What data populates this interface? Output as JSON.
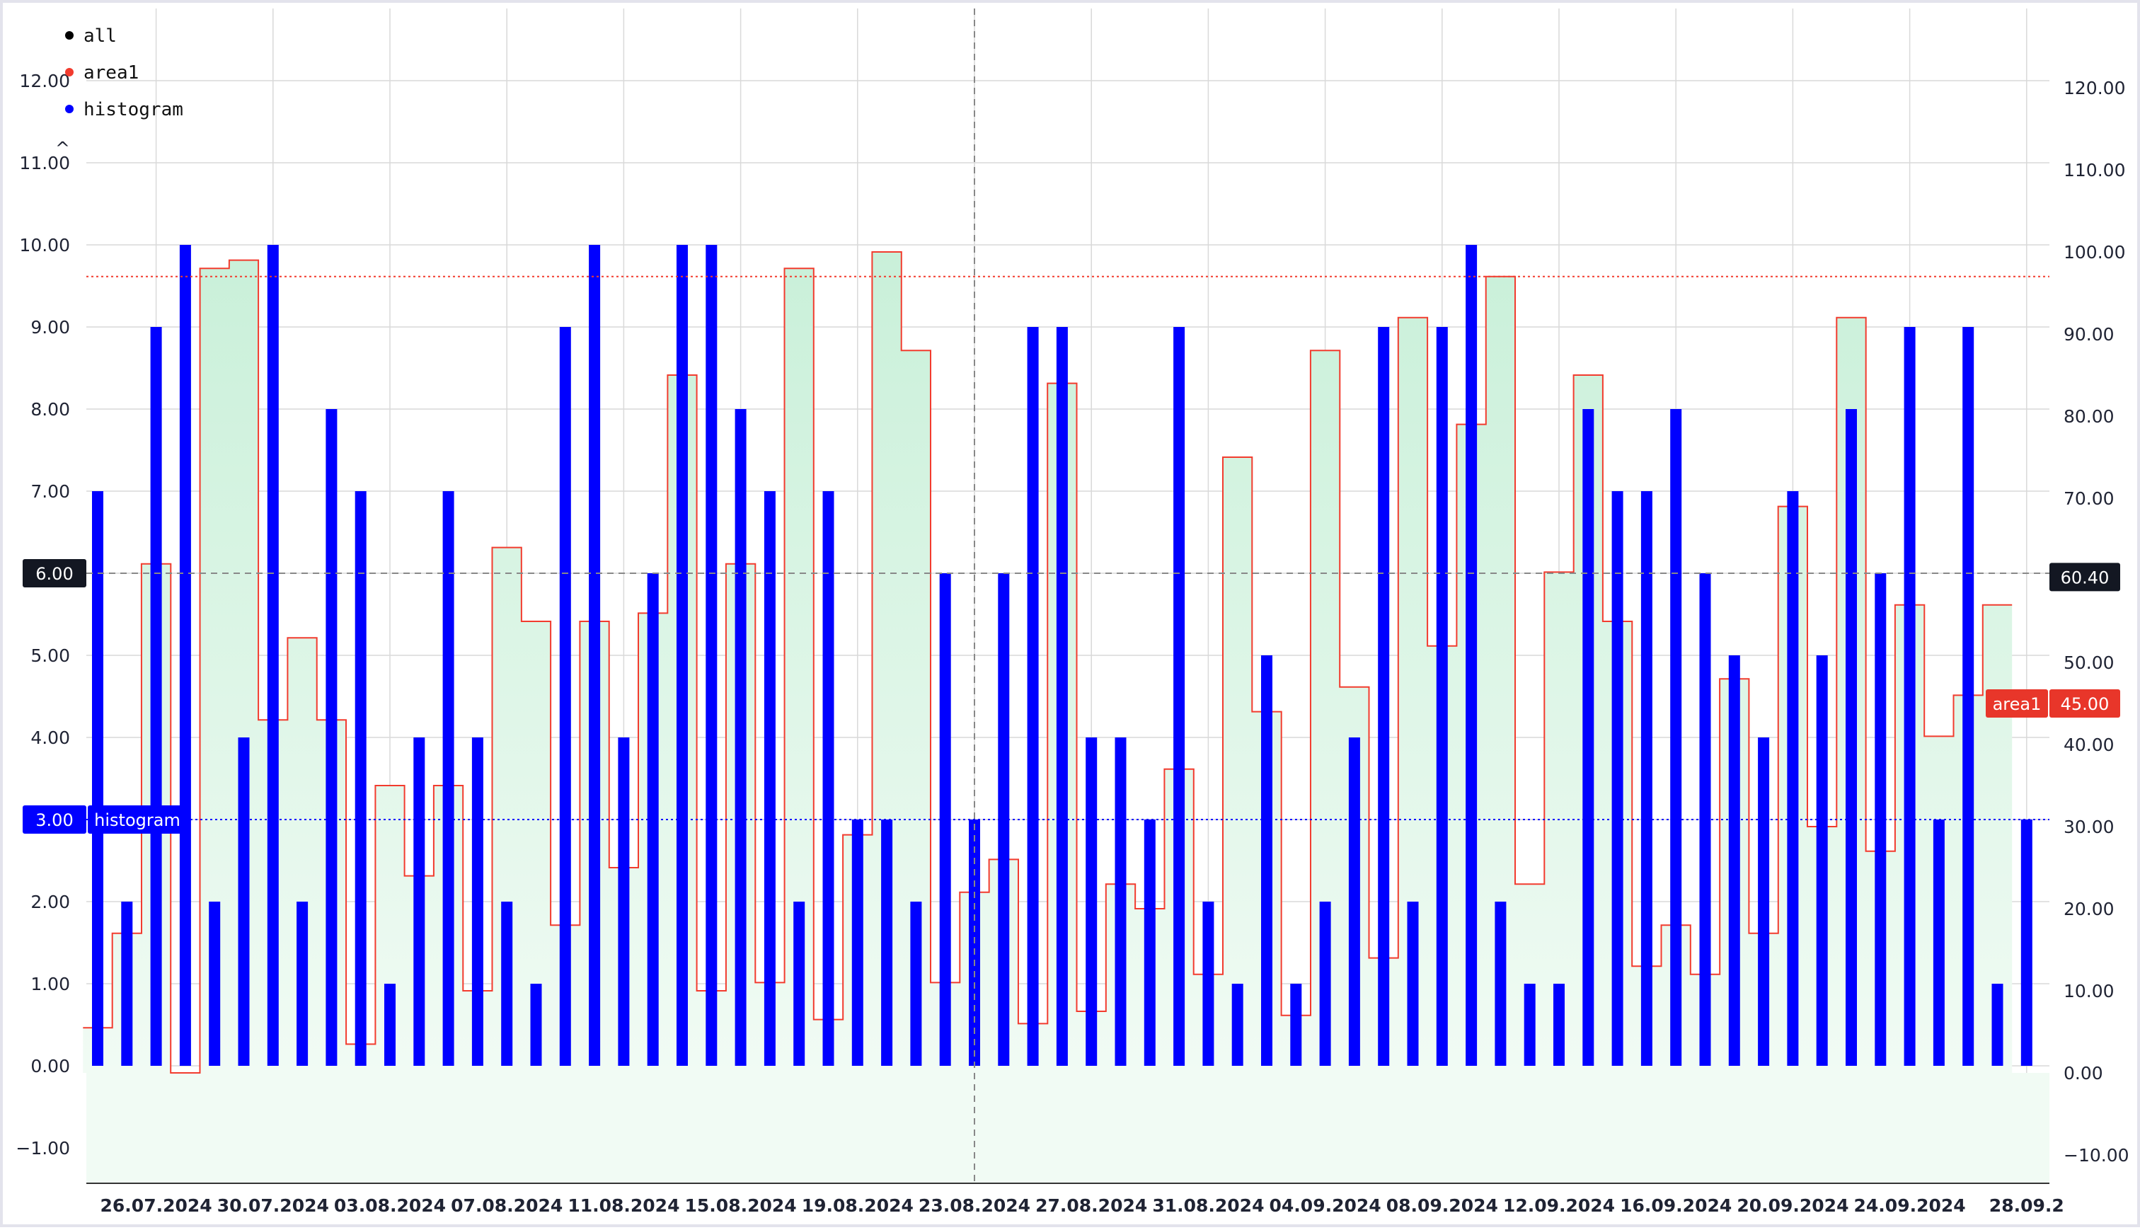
{
  "colors": {
    "histogram": "#0000ff",
    "area_line": "#f23b2e",
    "area_fill_top": "#c9f0d9",
    "area_fill_bottom": "#f1fbf4",
    "grid": "#d9d9d9",
    "crosshair": "#888888",
    "dark_tag": "#131722",
    "red_tag": "#e8362a",
    "blue_tag": "#0000ff"
  },
  "legend": [
    {
      "label": "all",
      "color": "#000000"
    },
    {
      "label": "area1",
      "color": "#f23b2e"
    },
    {
      "label": "histogram",
      "color": "#0000ff"
    }
  ],
  "tags": {
    "left_crosshair": "6.00",
    "left_histogram_value": "3.00",
    "left_histogram_name": "histogram",
    "right_crosshair": "60.40",
    "right_area_name": "area1",
    "right_area_value": "45.00"
  },
  "chart_data": {
    "type": "bar",
    "x_start_date": "2024-07-24",
    "x_tick_labels": [
      "26.07.2024",
      "30.07.2024",
      "03.08.2024",
      "07.08.2024",
      "11.08.2024",
      "15.08.2024",
      "19.08.2024",
      "23.08.2024",
      "27.08.2024",
      "31.08.2024",
      "04.09.2024",
      "08.09.2024",
      "12.09.2024",
      "16.09.2024",
      "20.09.2024",
      "24.09.2024",
      "28.09.2"
    ],
    "left_axis": {
      "ylim": [
        -1.4,
        12.4
      ],
      "ticks": [
        "−1.00",
        "0.00",
        "1.00",
        "2.00",
        "3.00",
        "4.00",
        "5.00",
        "6.00",
        "7.00",
        "8.00",
        "9.00",
        "10.00",
        "11.00",
        "12.00"
      ]
    },
    "right_axis": {
      "ylim": [
        -14,
        124
      ],
      "ticks": [
        "−10.00",
        "0.00",
        "10.00",
        "20.00",
        "30.00",
        "40.00",
        "50.00",
        "60.00",
        "70.00",
        "80.00",
        "90.00",
        "100.00",
        "110.00",
        "120.00"
      ]
    },
    "series": [
      {
        "name": "histogram",
        "type": "histogram",
        "axis": "left",
        "values": [
          7,
          2,
          9,
          10,
          2,
          4,
          10,
          2,
          8,
          7,
          1,
          4,
          7,
          4,
          2,
          1,
          9,
          10,
          4,
          6,
          10,
          10,
          8,
          7,
          2,
          7,
          3,
          3,
          2,
          6,
          3,
          6,
          9,
          9,
          4,
          4,
          3,
          9,
          2,
          1,
          5,
          1,
          2,
          4,
          9,
          2,
          9,
          10,
          2,
          1,
          1,
          8,
          7,
          7,
          8,
          6,
          5,
          4,
          7,
          5,
          8,
          6,
          9,
          3,
          9,
          1,
          3
        ]
      },
      {
        "name": "area1",
        "type": "step-area",
        "axis": "right",
        "values": [
          5.5,
          17,
          62,
          0,
          98,
          99,
          43,
          53,
          43,
          3.5,
          35,
          24,
          35,
          10,
          64,
          55,
          18,
          55,
          25,
          56,
          85,
          10,
          62,
          11,
          98,
          6.5,
          29,
          100,
          88,
          11,
          22,
          26,
          6,
          84,
          7.5,
          23,
          20,
          37,
          12,
          75,
          44,
          7,
          88,
          47,
          14,
          92,
          52,
          79,
          97,
          23,
          61,
          85,
          55,
          13,
          18,
          12,
          48,
          17,
          69,
          30,
          92,
          27,
          57,
          41,
          46,
          57
        ]
      },
      {
        "name": "horizontal_line_area",
        "axis": "right",
        "values": [
          97
        ]
      },
      {
        "name": "horizontal_line_histogram",
        "axis": "left",
        "values": [
          3
        ]
      }
    ],
    "crosshair": {
      "date": "23.08.2024",
      "left_value": 6.0,
      "right_value": 60.4
    }
  }
}
